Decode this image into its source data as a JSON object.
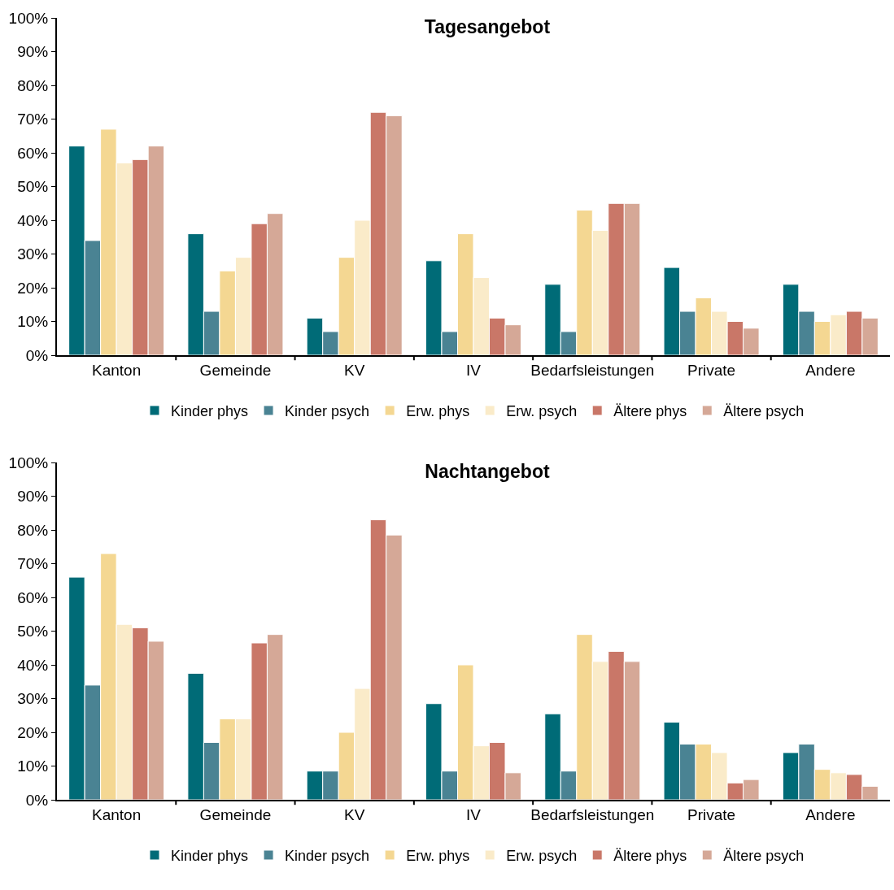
{
  "chart_data": [
    {
      "type": "bar",
      "title": "Tagesangebot",
      "categories": [
        "Kanton",
        "Gemeinde",
        "KV",
        "IV",
        "Bedarfsleistungen",
        "Private",
        "Andere"
      ],
      "series": [
        {
          "name": "Kinder phys",
          "color": "#006b77",
          "values": [
            62,
            36,
            11,
            28,
            21,
            26,
            21
          ]
        },
        {
          "name": "Kinder psych",
          "color": "#4a8393",
          "values": [
            34,
            13,
            7,
            7,
            7,
            13,
            13
          ]
        },
        {
          "name": "Erw. phys",
          "color": "#f4d792",
          "values": [
            67,
            25,
            29,
            36,
            43,
            17,
            10
          ]
        },
        {
          "name": "Erw. psych",
          "color": "#faebc9",
          "values": [
            57,
            29,
            40,
            23,
            37,
            13,
            12
          ]
        },
        {
          "name": "Ältere phys",
          "color": "#c97768",
          "values": [
            58,
            39,
            72,
            11,
            45,
            10,
            13
          ]
        },
        {
          "name": "Ältere psych",
          "color": "#d5a897",
          "values": [
            62,
            42,
            71,
            9,
            45,
            8,
            11
          ]
        }
      ],
      "ylim": [
        0,
        100
      ],
      "yticks": [
        {
          "value": 0,
          "label": "0%"
        },
        {
          "value": 10,
          "label": "10%"
        },
        {
          "value": 20,
          "label": "20%"
        },
        {
          "value": 30,
          "label": "30%"
        },
        {
          "value": 40,
          "label": "40%"
        },
        {
          "value": 50,
          "label": "50%"
        },
        {
          "value": 60,
          "label": "60%"
        },
        {
          "value": 70,
          "label": "70%"
        },
        {
          "value": 80,
          "label": "80%"
        },
        {
          "value": 90,
          "label": "90%"
        },
        {
          "value": 100,
          "label": "100%"
        }
      ],
      "grid": false,
      "legend": "bottom"
    },
    {
      "type": "bar",
      "title": "Nachtangebot",
      "categories": [
        "Kanton",
        "Gemeinde",
        "KV",
        "IV",
        "Bedarfsleistungen",
        "Private",
        "Andere"
      ],
      "series": [
        {
          "name": "Kinder phys",
          "color": "#006b77",
          "values": [
            66,
            37.5,
            8.5,
            28.5,
            25.5,
            23,
            14
          ]
        },
        {
          "name": "Kinder psych",
          "color": "#4a8393",
          "values": [
            34,
            17,
            8.5,
            8.5,
            8.5,
            16.5,
            16.5
          ]
        },
        {
          "name": "Erw. phys",
          "color": "#f4d792",
          "values": [
            73,
            24,
            20,
            40,
            49,
            16.5,
            9
          ]
        },
        {
          "name": "Erw. psych",
          "color": "#faebc9",
          "values": [
            52,
            24,
            33,
            16,
            41,
            14,
            8
          ]
        },
        {
          "name": "Ältere phys",
          "color": "#c97768",
          "values": [
            51,
            46.5,
            83,
            17,
            44,
            5,
            7.5
          ]
        },
        {
          "name": "Ältere psych",
          "color": "#d5a897",
          "values": [
            47,
            49,
            78.5,
            8,
            41,
            6,
            4
          ]
        }
      ],
      "ylim": [
        0,
        100
      ],
      "yticks": [
        {
          "value": 0,
          "label": "0%"
        },
        {
          "value": 10,
          "label": "10%"
        },
        {
          "value": 20,
          "label": "20%"
        },
        {
          "value": 30,
          "label": "30%"
        },
        {
          "value": 40,
          "label": "40%"
        },
        {
          "value": 50,
          "label": "50%"
        },
        {
          "value": 60,
          "label": "60%"
        },
        {
          "value": 70,
          "label": "70%"
        },
        {
          "value": 80,
          "label": "80%"
        },
        {
          "value": 90,
          "label": "90%"
        },
        {
          "value": 100,
          "label": "100%"
        }
      ],
      "grid": false,
      "legend": "bottom"
    }
  ]
}
